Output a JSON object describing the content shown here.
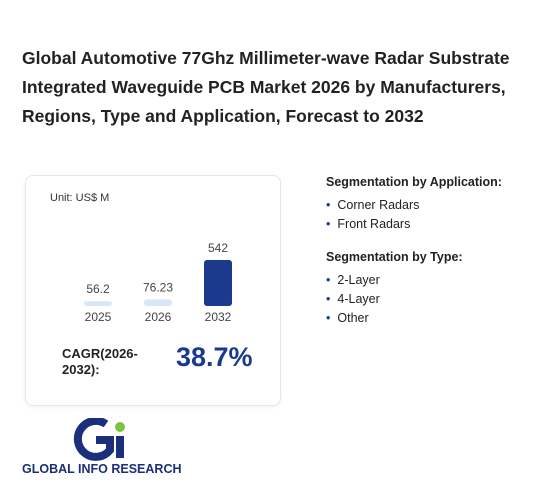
{
  "title": "Global Automotive 77Ghz Millimeter-wave Radar Substrate Integrated Waveguide PCB Market 2026 by Manufacturers, Regions, Type and Application, Forecast to 2032",
  "chart_data": {
    "type": "bar",
    "unit": "Unit: US$ M",
    "categories": [
      "2025",
      "2026",
      "2032"
    ],
    "values": [
      56.2,
      76.23,
      542
    ],
    "colors": [
      "#d8e6f6",
      "#d8e6f6",
      "#1b3a8e"
    ]
  },
  "cagr": {
    "label": "CAGR(2026-2032):",
    "value": "38.7%"
  },
  "segments": [
    {
      "heading": "Segmentation by Application:",
      "items": [
        "Corner Radars",
        "Front Radars"
      ]
    },
    {
      "heading": "Segmentation by Type:",
      "items": [
        "2-Layer",
        "4-Layer",
        "Other"
      ]
    }
  ],
  "logo": "GLOBAL INFO RESEARCH"
}
